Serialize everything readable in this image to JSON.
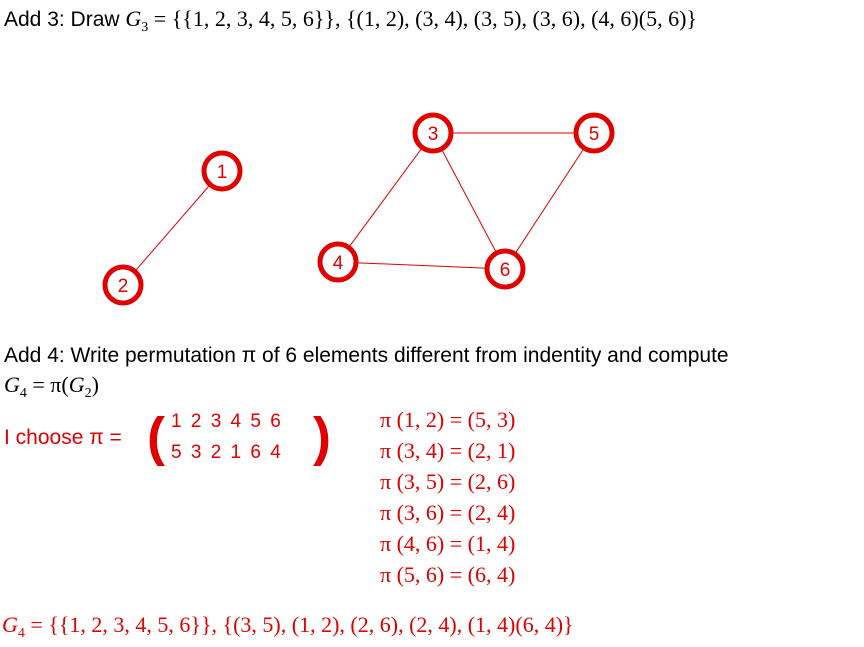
{
  "add3": {
    "prefix": "Add 3: Draw ",
    "graph_symbol": "G",
    "graph_sub": "3",
    "equals": " = ",
    "set_text": "{{1, 2, 3, 4, 5, 6}}, {(1, 2), (3, 4), (3, 5), (3, 6), (4, 6)(5, 6)}"
  },
  "graph": {
    "node_color": "#e00000",
    "edge_color": "#e00000",
    "nodes": [
      {
        "label": "1"
      },
      {
        "label": "2"
      },
      {
        "label": "3"
      },
      {
        "label": "4"
      },
      {
        "label": "5"
      },
      {
        "label": "6"
      }
    ]
  },
  "add4": {
    "line1": "Add 4: Write permutation π of 6 elements different from indentity and compute",
    "g_symbol": "G",
    "g_sub": "4",
    "g_rest": " = π(",
    "g2_symbol": "G",
    "g2_sub": "2",
    "g_close": ")"
  },
  "choose": {
    "label": "I choose π =",
    "row1": "1  2  3  4  5  6",
    "row2": "5  3  2  1  6  4"
  },
  "pi_lines": [
    "π (1, 2) = (5, 3)",
    "π (3, 4) = (2, 1)",
    "π (3, 5) = (2, 6)",
    "π (3, 6) = (2, 4)",
    "π (4, 6) = (1, 4)",
    "π (5, 6) = (6, 4)"
  ],
  "result": {
    "g_symbol": "G",
    "g_sub": "4",
    "equals": " = ",
    "set_text": "{{1, 2, 3, 4, 5, 6}}, {(3, 5), (1, 2), (2, 6), (2, 4), (1, 4)(6, 4)}"
  }
}
